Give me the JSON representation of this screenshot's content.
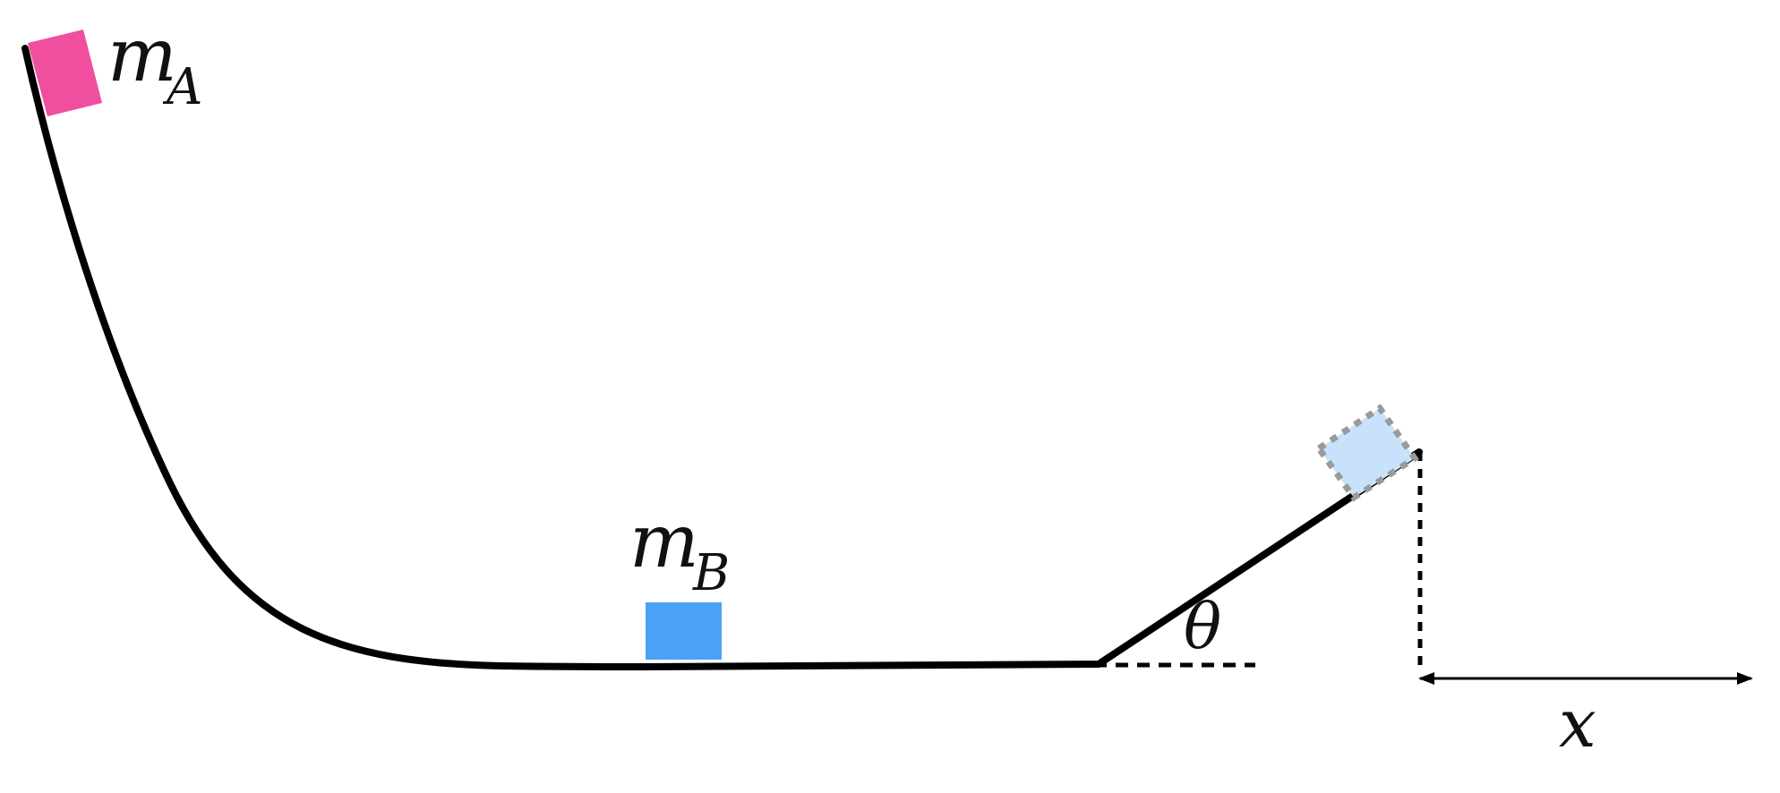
{
  "labels": {
    "mass_a_main": "m",
    "mass_a_sub": "A",
    "mass_b_main": "m",
    "mass_b_sub": "B",
    "angle": "θ",
    "distance": "x"
  },
  "colors": {
    "track": "#000000",
    "block_a": "#ef4f9e",
    "block_b": "#4aa1f6",
    "block_b_final": "#c8e2fb",
    "dotted_outline": "#9a9a9a"
  }
}
